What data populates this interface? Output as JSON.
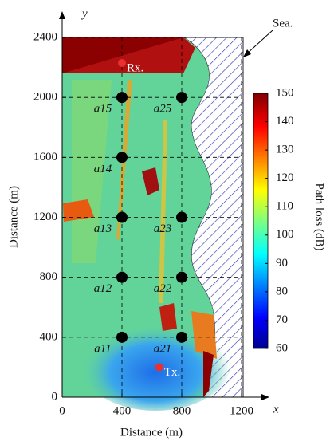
{
  "chart_data": {
    "type": "heatmap",
    "xlabel": "Distance (m)",
    "ylabel": "Distance (m)",
    "x_axis_symbol": "x",
    "y_axis_symbol": "y",
    "xlim": [
      0,
      1200
    ],
    "ylim": [
      0,
      2400
    ],
    "xticks": [
      0,
      400,
      800,
      1200
    ],
    "yticks": [
      0,
      400,
      800,
      1200,
      1600,
      2000,
      2400
    ],
    "grid": true,
    "colorbar": {
      "label": "Path loss (dB)",
      "clim": [
        60,
        150
      ],
      "ticks": [
        60,
        70,
        80,
        90,
        100,
        110,
        120,
        130,
        140,
        150
      ]
    },
    "nodes": {
      "labels": [
        "a11",
        "a12",
        "a13",
        "a14",
        "a15",
        "a21",
        "a22",
        "a23",
        "a25"
      ],
      "x": [
        400,
        400,
        400,
        400,
        400,
        800,
        800,
        800,
        800
      ],
      "y": [
        400,
        800,
        1200,
        1600,
        2000,
        400,
        800,
        1200,
        2000
      ],
      "color": "#000000"
    },
    "markers": {
      "labels": [
        "Tx.",
        "Rx."
      ],
      "x": [
        650,
        400
      ],
      "y": [
        200,
        2230
      ],
      "color": "#e83030"
    },
    "annotation": "Sea."
  }
}
